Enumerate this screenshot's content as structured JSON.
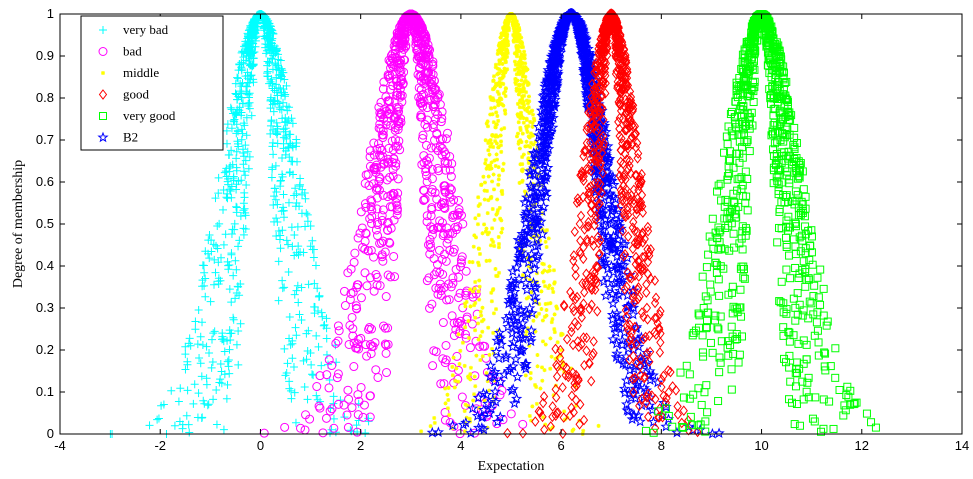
{
  "chart_data": {
    "type": "scatter",
    "title": "",
    "xlabel": "Expectation",
    "ylabel": "Degree of membership",
    "xlim": [
      -4,
      14
    ],
    "ylim": [
      0,
      1
    ],
    "xticks": [
      "-4",
      "-2",
      "0",
      "2",
      "4",
      "6",
      "8",
      "10",
      "12",
      "14"
    ],
    "yticks": [
      "0",
      "0.1",
      "0.2",
      "0.3",
      "0.4",
      "0.5",
      "0.6",
      "0.7",
      "0.8",
      "0.9",
      "1"
    ],
    "grid": false,
    "legend_position": "top-left",
    "series": [
      {
        "name": "very bad",
        "marker": "plus",
        "color": "#00ffff",
        "expectation": 0,
        "entropy_spread": [
          0.2,
          0.75
        ]
      },
      {
        "name": "bad",
        "marker": "circle",
        "color": "#ff00ff",
        "expectation": 3,
        "entropy_spread": [
          0.2,
          0.8
        ]
      },
      {
        "name": "middle",
        "marker": "dot",
        "color": "#ffff00",
        "expectation": 5,
        "entropy_spread": [
          0.12,
          0.55
        ]
      },
      {
        "name": "good",
        "marker": "diamond",
        "color": "#ff0000",
        "expectation": 7,
        "entropy_spread": [
          0.15,
          0.55
        ]
      },
      {
        "name": "very good",
        "marker": "square",
        "color": "#00ff00",
        "expectation": 10,
        "entropy_spread": [
          0.2,
          0.75
        ]
      },
      {
        "name": "B2",
        "marker": "pentagram",
        "color": "#0000ff",
        "expectation": 6.2,
        "entropy_spread": [
          0.4,
          0.75
        ]
      }
    ]
  }
}
